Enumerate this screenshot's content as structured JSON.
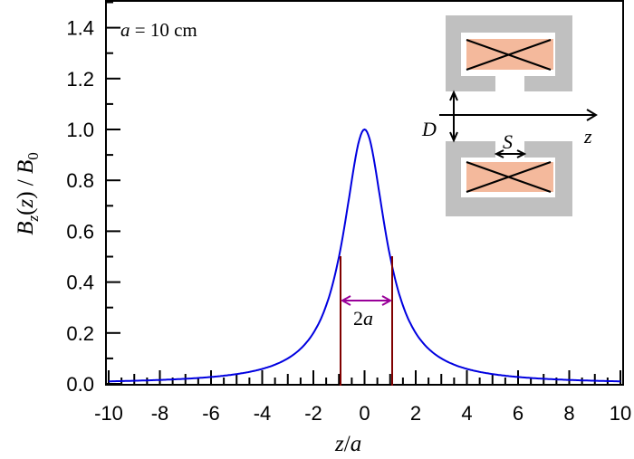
{
  "chart_data": {
    "type": "line",
    "title": "",
    "xlabel": "z/a",
    "ylabel": "B_z(z) / B_0",
    "xlim": [
      -10,
      10
    ],
    "ylim": [
      0,
      1.5
    ],
    "xticks": [
      "-10",
      "-8",
      "-6",
      "-4",
      "-2",
      "0",
      "2",
      "4",
      "6",
      "8",
      "10"
    ],
    "yticks": [
      "0.0",
      "0.2",
      "0.4",
      "0.6",
      "0.8",
      "1.0",
      "1.2",
      "1.4"
    ],
    "grid": false,
    "series": [
      {
        "name": "B_z(z)/B_0",
        "color": "#0000e0",
        "formula": "1/(1+(z/a)^2)",
        "x": [
          -10,
          -8,
          -6,
          -4,
          -3,
          -2,
          -1.5,
          -1,
          -0.5,
          0,
          0.5,
          1,
          1.5,
          2,
          3,
          4,
          6,
          8,
          10
        ],
        "y": [
          0.01,
          0.015,
          0.027,
          0.059,
          0.1,
          0.2,
          0.31,
          0.5,
          0.8,
          1.0,
          0.8,
          0.5,
          0.31,
          0.2,
          0.1,
          0.059,
          0.027,
          0.015,
          0.01
        ]
      }
    ],
    "annotations": [
      {
        "text": "a = 10 cm",
        "position": "top-left"
      },
      {
        "text": "2a",
        "type": "width-marker",
        "x_from": -1,
        "x_to": 1,
        "y": 0.5,
        "color": "#800080",
        "lines_color": "#800000"
      }
    ],
    "inset": {
      "labels": {
        "gap": "D",
        "slot": "S",
        "axis": "z"
      },
      "yoke_color": "#c0c0c0",
      "coil_color": "#f4b99c"
    }
  },
  "labels": {
    "annotation": "a = 10 cm",
    "annotation_var": "a",
    "annotation_rest": " = 10 cm",
    "width_label_num": "2",
    "width_label_var": "a",
    "xlabel_z": "z",
    "xlabel_slash": "/",
    "xlabel_a": "a",
    "inset_D": "D",
    "inset_S": "S",
    "inset_z": "z"
  }
}
